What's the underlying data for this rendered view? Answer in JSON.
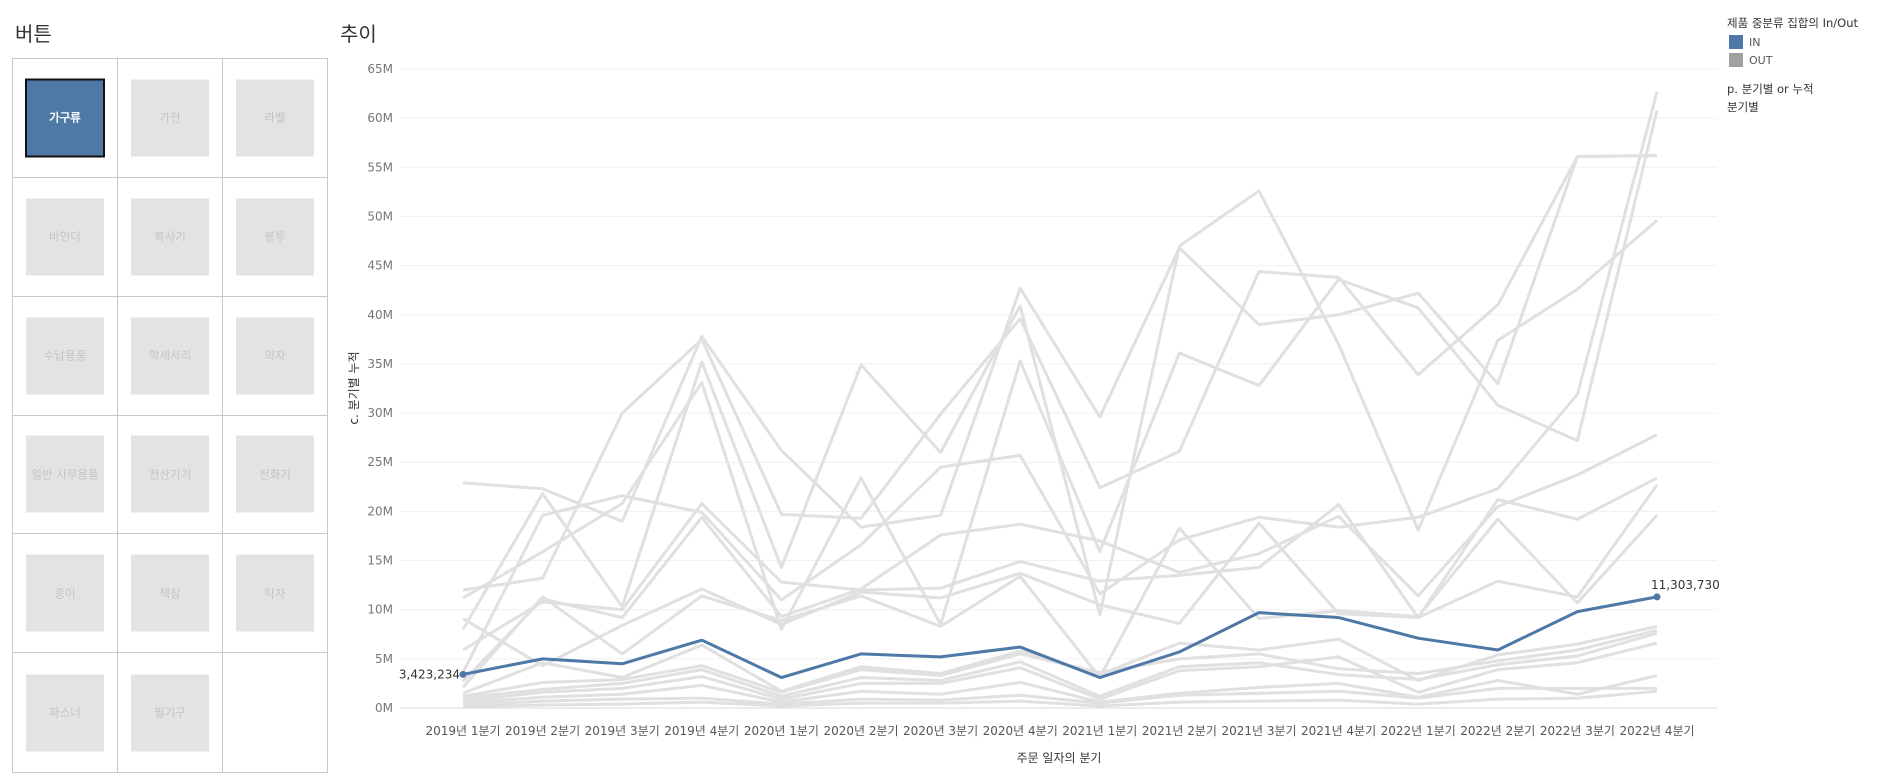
{
  "buttons_panel": {
    "title": "버튼",
    "items": [
      {
        "label": "가구류",
        "active": true
      },
      {
        "label": "가전",
        "active": false
      },
      {
        "label": "라벨",
        "active": false
      },
      {
        "label": "바인더",
        "active": false
      },
      {
        "label": "복사기",
        "active": false
      },
      {
        "label": "봉투",
        "active": false
      },
      {
        "label": "수납용품",
        "active": false
      },
      {
        "label": "악세사리",
        "active": false
      },
      {
        "label": "의자",
        "active": false
      },
      {
        "label": "일반 사무용품",
        "active": false
      },
      {
        "label": "전산기기",
        "active": false
      },
      {
        "label": "전화기",
        "active": false
      },
      {
        "label": "종이",
        "active": false
      },
      {
        "label": "책장",
        "active": false
      },
      {
        "label": "탁자",
        "active": false
      },
      {
        "label": "파스너",
        "active": false
      },
      {
        "label": "필기구",
        "active": false
      }
    ]
  },
  "legend": {
    "title": "제품 중분류 집합의 In/Out",
    "items": [
      {
        "label": "IN",
        "color": "#4e79a7"
      },
      {
        "label": "OUT",
        "color": "#a0a0a0"
      }
    ],
    "parameter_title": "p. 분기별 or 누적",
    "parameter_value": "분기별"
  },
  "chart_data": {
    "type": "line",
    "title": "추이",
    "xlabel": "주문 일자의 분기",
    "ylabel": "c. 분기별 누적",
    "ylim": [
      0,
      65000000
    ],
    "yticks": [
      "0M",
      "5M",
      "10M",
      "15M",
      "20M",
      "25M",
      "30M",
      "35M",
      "40M",
      "45M",
      "50M",
      "55M",
      "60M",
      "65M"
    ],
    "categories": [
      "2019년 1분기",
      "2019년 2분기",
      "2019년 3분기",
      "2019년 4분기",
      "2020년 1분기",
      "2020년 2분기",
      "2020년 3분기",
      "2020년 4분기",
      "2021년 1분기",
      "2021년 2분기",
      "2021년 3분기",
      "2021년 4분기",
      "2022년 1분기",
      "2022년 2분기",
      "2022년 3분기",
      "2022년 4분기"
    ],
    "grid": true,
    "legend_position": "top-right",
    "in_color": "#4e79a7",
    "out_color": "#e0e0e0",
    "series": [
      {
        "group": "IN",
        "values": [
          3423234,
          5000000,
          4500000,
          6900000,
          3100000,
          5500000,
          5200000,
          6200000,
          3100000,
          5700000,
          9700000,
          9200000,
          7100000,
          5900000,
          9800000,
          11303730
        ],
        "start_label": "3,423,234",
        "end_label": "11,303,730"
      },
      {
        "group": "OUT",
        "values": [
          22900000,
          22300000,
          19000000,
          37800000,
          26200000,
          18400000,
          19600000,
          42700000,
          29600000,
          46800000,
          39000000,
          40000000,
          42200000,
          33000000,
          56100000,
          56200000
        ]
      },
      {
        "group": "OUT",
        "values": [
          12000000,
          13200000,
          30000000,
          37500000,
          19700000,
          19300000,
          29900000,
          39600000,
          22400000,
          26100000,
          44400000,
          43800000,
          33900000,
          41000000,
          56100000,
          56200000
        ]
      },
      {
        "group": "OUT",
        "values": [
          8000000,
          21800000,
          10300000,
          35200000,
          14300000,
          34900000,
          26000000,
          40900000,
          9500000,
          47000000,
          52600000,
          37000000,
          18100000,
          37400000,
          42600000,
          49600000
        ]
      },
      {
        "group": "OUT",
        "values": [
          11200000,
          15900000,
          20800000,
          33100000,
          8000000,
          23400000,
          8500000,
          35300000,
          15900000,
          36100000,
          32800000,
          43600000,
          40700000,
          30800000,
          27200000,
          60800000
        ]
      },
      {
        "group": "OUT",
        "values": [
          3600000,
          19600000,
          21600000,
          19900000,
          11000000,
          16600000,
          24500000,
          25700000,
          11600000,
          17100000,
          19400000,
          18400000,
          19400000,
          22300000,
          31900000,
          62700000
        ]
      },
      {
        "group": "OUT",
        "values": [
          2700000,
          11100000,
          9200000,
          19400000,
          9300000,
          12100000,
          17600000,
          18700000,
          17000000,
          13800000,
          15700000,
          19500000,
          11400000,
          20500000,
          23700000,
          27800000
        ]
      },
      {
        "group": "OUT",
        "values": [
          5900000,
          10800000,
          10000000,
          20800000,
          12800000,
          12000000,
          12200000,
          14900000,
          12900000,
          13500000,
          14300000,
          20700000,
          9200000,
          21200000,
          19200000,
          23400000
        ]
      },
      {
        "group": "OUT",
        "values": [
          9100000,
          4300000,
          8400000,
          12100000,
          8500000,
          11800000,
          11200000,
          13700000,
          10500000,
          8600000,
          18800000,
          9600000,
          9200000,
          12900000,
          11300000,
          22700000
        ]
      },
      {
        "group": "OUT",
        "values": [
          2100000,
          11300000,
          5500000,
          11400000,
          8900000,
          11400000,
          8300000,
          13400000,
          3100000,
          18300000,
          9100000,
          9900000,
          9300000,
          19200000,
          10700000,
          19600000
        ]
      },
      {
        "group": "OUT",
        "values": [
          1500000,
          4600000,
          3100000,
          6400000,
          1700000,
          4200000,
          3500000,
          5800000,
          3400000,
          6600000,
          5900000,
          7000000,
          2800000,
          5400000,
          6500000,
          8300000
        ]
      },
      {
        "group": "OUT",
        "values": [
          1200000,
          2600000,
          2900000,
          4300000,
          1600000,
          3900000,
          3300000,
          5500000,
          3600000,
          5000000,
          5500000,
          4000000,
          3500000,
          4800000,
          5900000,
          7900000
        ]
      },
      {
        "group": "OUT",
        "values": [
          1000000,
          1900000,
          2500000,
          3900000,
          1200000,
          3100000,
          2800000,
          4700000,
          1200000,
          4200000,
          4600000,
          3400000,
          2900000,
          4400000,
          5300000,
          7600000
        ]
      },
      {
        "group": "OUT",
        "values": [
          700000,
          1600000,
          2000000,
          3200000,
          900000,
          2500000,
          2500000,
          4100000,
          900000,
          3800000,
          4200000,
          5200000,
          1600000,
          3900000,
          4600000,
          6600000
        ]
      },
      {
        "group": "OUT",
        "values": [
          500000,
          1100000,
          1400000,
          2300000,
          600000,
          1700000,
          1400000,
          2600000,
          600000,
          1500000,
          2100000,
          2500000,
          1100000,
          2800000,
          1400000,
          3300000
        ]
      },
      {
        "group": "OUT",
        "values": [
          300000,
          700000,
          900000,
          1000000,
          400000,
          900000,
          800000,
          1300000,
          500000,
          1300000,
          1500000,
          1700000,
          1000000,
          2000000,
          2000000,
          2000000
        ]
      },
      {
        "group": "OUT",
        "values": [
          150000,
          300000,
          400000,
          600000,
          200000,
          500000,
          500000,
          700000,
          200000,
          600000,
          700000,
          800000,
          400000,
          900000,
          1000000,
          1700000
        ]
      }
    ]
  }
}
